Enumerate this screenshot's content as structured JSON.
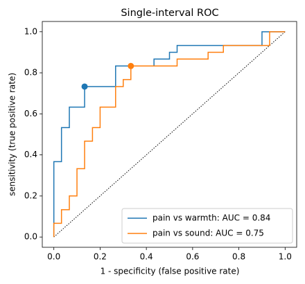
{
  "chart_data": {
    "type": "line",
    "title": "Single-interval ROC",
    "x_label": "1 - specificity (false positive rate)",
    "y_label": "sensitivity (true positive rate)",
    "xlim": [
      -0.05,
      1.05
    ],
    "ylim": [
      -0.05,
      1.05
    ],
    "xticks": [
      {
        "value": 0,
        "label": "0.0"
      },
      0.2,
      0.4,
      0.6,
      0.8,
      {
        "value": 1,
        "label": "1.0"
      }
    ],
    "yticks": [
      {
        "value": 0,
        "label": "0.0"
      },
      0.2,
      0.4,
      0.6,
      0.8,
      {
        "value": 1,
        "label": "1.0"
      }
    ],
    "grid": false,
    "legend": "lower right",
    "reference_line": {
      "x": [
        0,
        1
      ],
      "y": [
        0,
        1
      ],
      "color": "#000000"
    },
    "series": [
      {
        "name": "pain vs warmth: AUC = 0.84",
        "color": "#1f77b4",
        "x": [
          0,
          0,
          0.033,
          0.033,
          0.067,
          0.067,
          0.133,
          0.133,
          0.267,
          0.267,
          0.433,
          0.433,
          0.5,
          0.5,
          0.533,
          0.533,
          0.9,
          0.9,
          1.0
        ],
        "values": [
          0,
          0.367,
          0.367,
          0.533,
          0.533,
          0.633,
          0.633,
          0.733,
          0.733,
          0.833,
          0.833,
          0.867,
          0.867,
          0.9,
          0.9,
          0.933,
          0.933,
          1.0,
          1.0
        ],
        "point": {
          "x": 0.133,
          "y": 0.733
        }
      },
      {
        "name": "pain vs sound: AUC = 0.75",
        "color": "#ff7f0e",
        "x": [
          0,
          0,
          0.033,
          0.033,
          0.067,
          0.067,
          0.1,
          0.1,
          0.133,
          0.133,
          0.167,
          0.167,
          0.2,
          0.2,
          0.267,
          0.267,
          0.3,
          0.3,
          0.333,
          0.333,
          0.533,
          0.533,
          0.667,
          0.667,
          0.733,
          0.733,
          0.933,
          0.933,
          1.0
        ],
        "values": [
          0,
          0.067,
          0.067,
          0.133,
          0.133,
          0.2,
          0.2,
          0.333,
          0.333,
          0.467,
          0.467,
          0.533,
          0.533,
          0.633,
          0.633,
          0.733,
          0.733,
          0.767,
          0.767,
          0.833,
          0.833,
          0.867,
          0.867,
          0.9,
          0.9,
          0.933,
          0.933,
          1.0,
          1.0
        ],
        "point": {
          "x": 0.333,
          "y": 0.833
        }
      }
    ]
  }
}
